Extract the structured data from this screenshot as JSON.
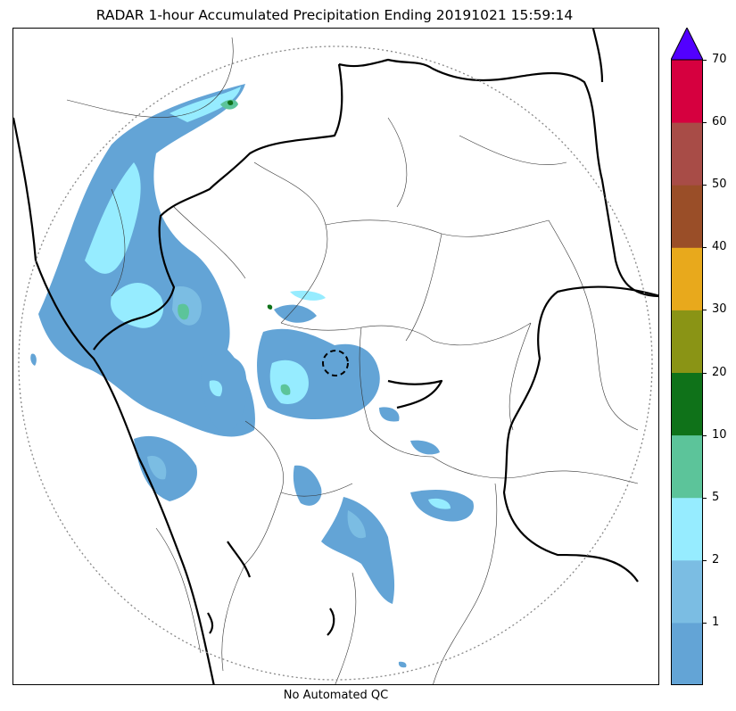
{
  "title": "RADAR 1-hour Accumulated Precipitation Ending 20191021 15:59:14",
  "footer_label": "No Automated QC",
  "map": {
    "range_ring": "dotted",
    "radar_site_marker": "dashed-circle",
    "colors": {
      "state_border": "#000000",
      "district_border": "#333333",
      "range_ring": "#888888"
    }
  },
  "colorbar": {
    "extend": "max",
    "extend_color": "#5200ff",
    "bins": [
      {
        "color": "#63a4d6",
        "from": 0,
        "to": 1
      },
      {
        "color": "#7bbde3",
        "from": 1,
        "to": 2
      },
      {
        "color": "#96ecff",
        "from": 2,
        "to": 5
      },
      {
        "color": "#5cc49a",
        "from": 5,
        "to": 10
      },
      {
        "color": "#0f7219",
        "from": 10,
        "to": 20
      },
      {
        "color": "#8a9415",
        "from": 20,
        "to": 30
      },
      {
        "color": "#e8a91c",
        "from": 30,
        "to": 40
      },
      {
        "color": "#9a4e28",
        "from": 40,
        "to": 50
      },
      {
        "color": "#a84c47",
        "from": 50,
        "to": 60
      },
      {
        "color": "#d6003f",
        "from": 60,
        "to": 70
      }
    ],
    "tick_labels": [
      "1",
      "2",
      "5",
      "10",
      "20",
      "30",
      "40",
      "50",
      "60",
      "70"
    ]
  }
}
